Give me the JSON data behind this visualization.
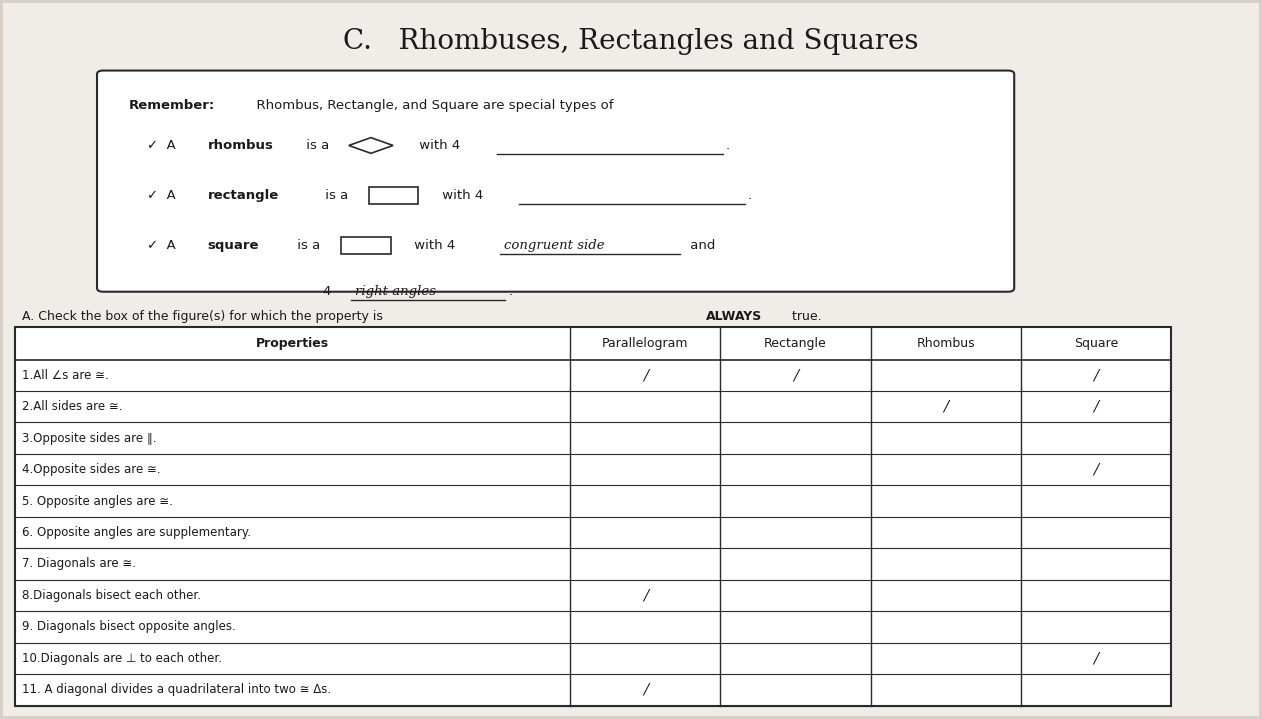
{
  "title": "C.   Rhombuses, Rectangles and Squares",
  "remember_label": "Remember:",
  "remember_text": "  Rhombus, Rectangle, and Square are special types of",
  "square_answer1": "congruent side",
  "square_answer2": "right angles",
  "section_a_title": "A. Check the box of the figure(s) for which the property is ",
  "section_a_bold": "ALWAYS",
  "section_a_end": " true.",
  "col_headers": [
    "Properties",
    "Parallelogram",
    "Rectangle",
    "Rhombus",
    "Square"
  ],
  "properties": [
    "1.All ∠s are ≅.",
    "2.All sides are ≅.",
    "3.Opposite sides are ∥.",
    "4.Opposite sides are ≅.",
    "5. Opposite angles are ≅.",
    "6. Opposite angles are supplementary.",
    "7. Diagonals are ≅.",
    "8.Diagonals bisect each other.",
    "9. Diagonals bisect opposite angles.",
    "10.Diagonals are ⊥ to each other.",
    "11. A diagonal divides a quadrilateral into two ≅ Δs."
  ],
  "checks": {
    "0": {
      "Parallelogram": true,
      "Rectangle": true,
      "Rhombus": false,
      "Square": true
    },
    "1": {
      "Parallelogram": false,
      "Rectangle": false,
      "Rhombus": true,
      "Square": true
    },
    "2": {
      "Parallelogram": false,
      "Rectangle": false,
      "Rhombus": false,
      "Square": false
    },
    "3": {
      "Parallelogram": false,
      "Rectangle": false,
      "Rhombus": false,
      "Square": true
    },
    "4": {
      "Parallelogram": false,
      "Rectangle": false,
      "Rhombus": false,
      "Square": false
    },
    "5": {
      "Parallelogram": false,
      "Rectangle": false,
      "Rhombus": false,
      "Square": false
    },
    "6": {
      "Parallelogram": false,
      "Rectangle": false,
      "Rhombus": false,
      "Square": false
    },
    "7": {
      "Parallelogram": true,
      "Rectangle": false,
      "Rhombus": false,
      "Square": false
    },
    "8": {
      "Parallelogram": false,
      "Rectangle": false,
      "Rhombus": false,
      "Square": false
    },
    "9": {
      "Parallelogram": false,
      "Rectangle": false,
      "Rhombus": false,
      "Square": true
    },
    "10": {
      "Parallelogram": true,
      "Rectangle": false,
      "Rhombus": false,
      "Square": false
    }
  },
  "bg_color": "#d8d0c8",
  "paper_color": "#f0ede8",
  "line_color": "#2a2a2a",
  "title_color": "#1a1a1a",
  "text_color": "#1a1a1a"
}
